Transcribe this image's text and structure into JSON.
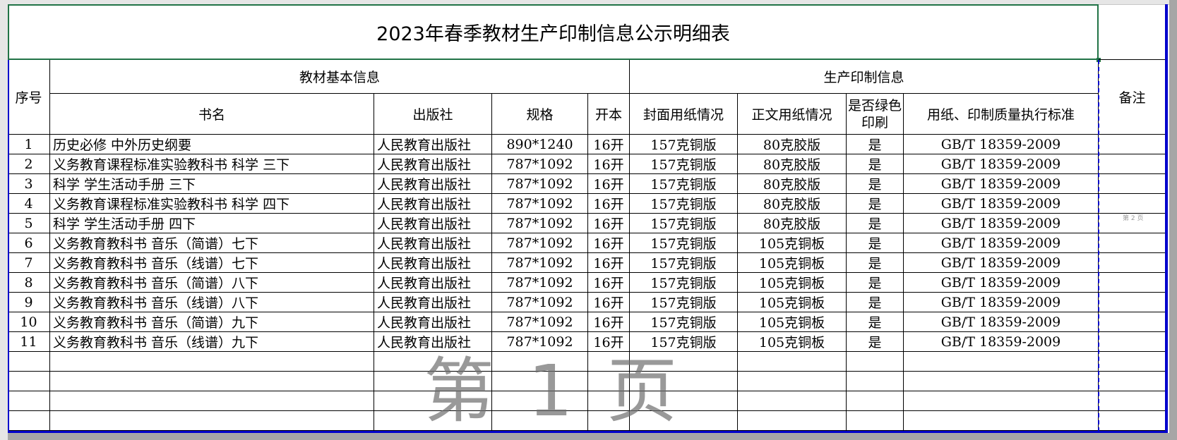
{
  "title": "2023年春季教材生产印制信息公示明细表",
  "headers": {
    "seq": "序号",
    "group_basic": "教材基本信息",
    "group_print": "生产印制信息",
    "remark": "备注",
    "book_name": "书名",
    "publisher": "出版社",
    "spec": "规格",
    "format": "开本",
    "cover_paper": "封面用纸情况",
    "body_paper": "正文用纸情况",
    "green_print": "是否绿色印刷",
    "standard": "用纸、印制质量执行标准"
  },
  "rows": [
    {
      "seq": "1",
      "name": "历史必修  中外历史纲要",
      "publisher": "人民教育出版社",
      "spec": "890*1240",
      "format": "16开",
      "cover": "157克铜版",
      "body": "80克胶版",
      "green": "是",
      "standard": "GB/T 18359-2009"
    },
    {
      "seq": "2",
      "name": "义务教育课程标准实验教科书 科学 三下",
      "publisher": "人民教育出版社",
      "spec": "787*1092",
      "format": "16开",
      "cover": "157克铜版",
      "body": "80克胶版",
      "green": "是",
      "standard": "GB/T 18359-2009"
    },
    {
      "seq": "3",
      "name": "科学 学生活动手册 三下",
      "publisher": "人民教育出版社",
      "spec": "787*1092",
      "format": "16开",
      "cover": "157克铜版",
      "body": "80克胶版",
      "green": "是",
      "standard": "GB/T 18359-2009"
    },
    {
      "seq": "4",
      "name": "义务教育课程标准实验教科书 科学 四下",
      "publisher": "人民教育出版社",
      "spec": "787*1092",
      "format": "16开",
      "cover": "157克铜版",
      "body": "80克胶版",
      "green": "是",
      "standard": "GB/T 18359-2009"
    },
    {
      "seq": "5",
      "name": "科学 学生活动手册 四下",
      "publisher": "人民教育出版社",
      "spec": "787*1092",
      "format": "16开",
      "cover": "157克铜版",
      "body": "80克胶版",
      "green": "是",
      "standard": "GB/T 18359-2009"
    },
    {
      "seq": "6",
      "name": "义务教育教科书 音乐（简谱）七下",
      "publisher": "人民教育出版社",
      "spec": "787*1092",
      "format": "16开",
      "cover": "157克铜版",
      "body": "105克铜板",
      "green": "是",
      "standard": "GB/T 18359-2009"
    },
    {
      "seq": "7",
      "name": "义务教育教科书 音乐（线谱）七下",
      "publisher": "人民教育出版社",
      "spec": "787*1092",
      "format": "16开",
      "cover": "157克铜版",
      "body": "105克铜板",
      "green": "是",
      "standard": "GB/T 18359-2009"
    },
    {
      "seq": "8",
      "name": "义务教育教科书 音乐（简谱）八下",
      "publisher": "人民教育出版社",
      "spec": "787*1092",
      "format": "16开",
      "cover": "157克铜版",
      "body": "105克铜板",
      "green": "是",
      "standard": "GB/T 18359-2009"
    },
    {
      "seq": "9",
      "name": "义务教育教科书 音乐（线谱）八下",
      "publisher": "人民教育出版社",
      "spec": "787*1092",
      "format": "16开",
      "cover": "157克铜版",
      "body": "105克铜板",
      "green": "是",
      "standard": "GB/T 18359-2009"
    },
    {
      "seq": "10",
      "name": "义务教育教科书 音乐（简谱）九下",
      "publisher": "人民教育出版社",
      "spec": "787*1092",
      "format": "16开",
      "cover": "157克铜版",
      "body": "105克铜板",
      "green": "是",
      "standard": "GB/T 18359-2009"
    },
    {
      "seq": "11",
      "name": "义务教育教科书 音乐（线谱）九下",
      "publisher": "人民教育出版社",
      "spec": "787*1092",
      "format": "16开",
      "cover": "157克铜版",
      "body": "105克铜板",
      "green": "是",
      "standard": "GB/T 18359-2009"
    }
  ],
  "empty_rows": 4,
  "watermark": "第 1 页",
  "watermark_page2": "第 2 页",
  "colors": {
    "selection_border": "#217346",
    "page_break": "#0000cc"
  }
}
